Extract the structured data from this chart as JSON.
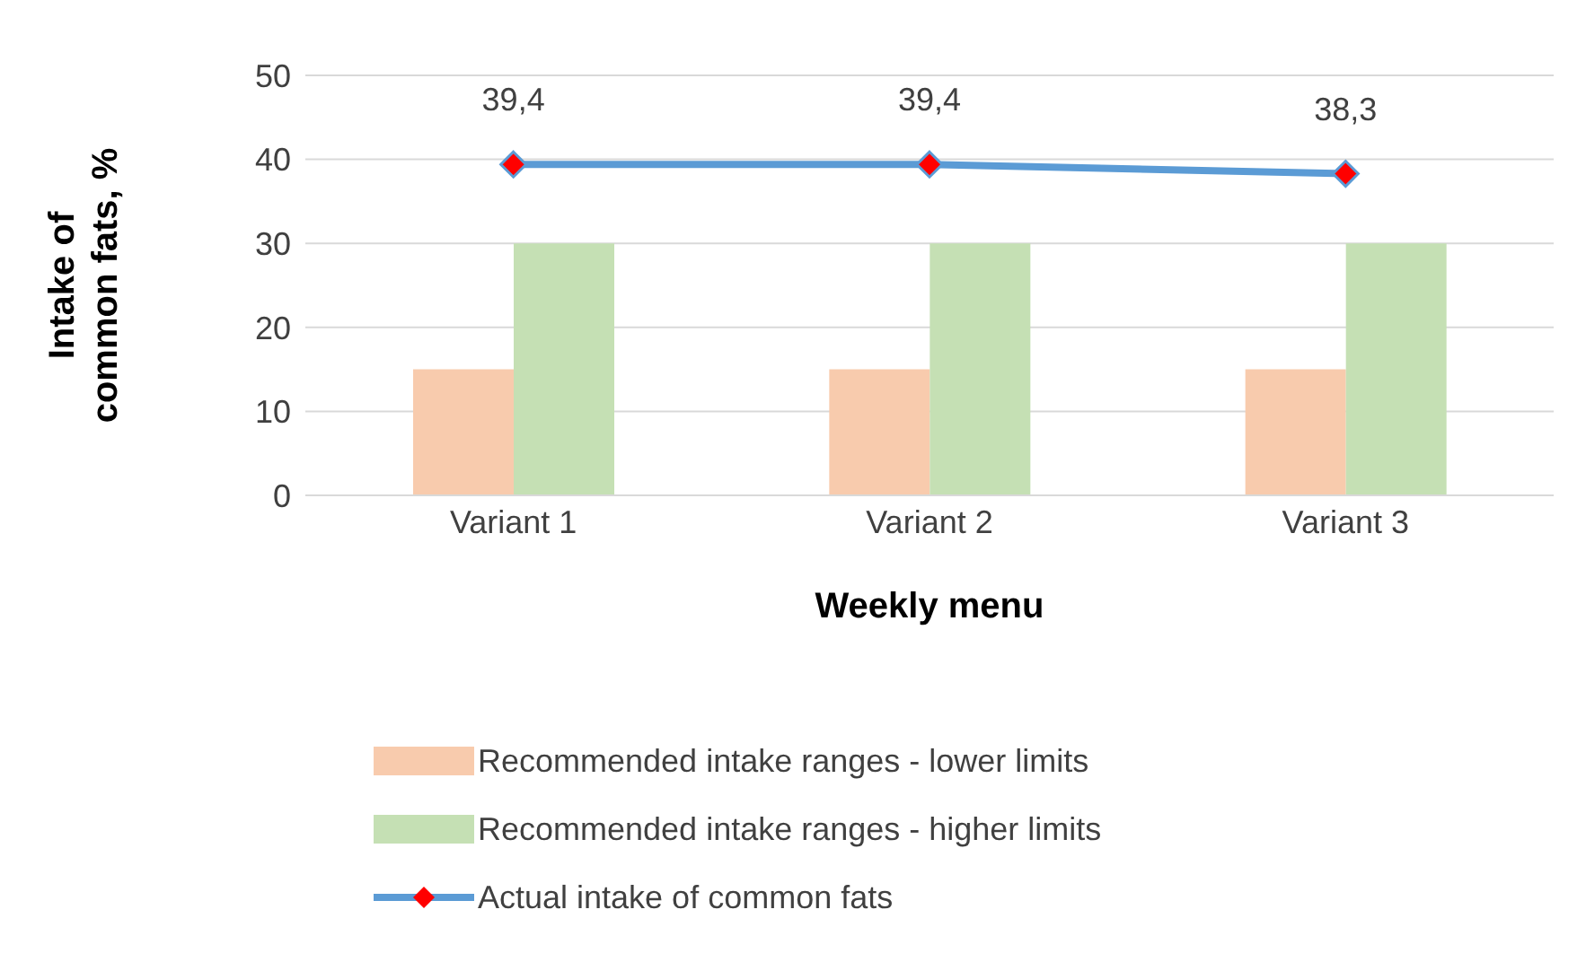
{
  "chart_data": {
    "type": "bar",
    "xlabel": "Weekly menu",
    "ylabel": "Intake of\ncommon fats, %",
    "categories": [
      "Variant 1",
      "Variant 2",
      "Variant 3"
    ],
    "series": [
      {
        "name": "Recommended intake ranges - lower  limits",
        "color": "#f8cbad",
        "values": [
          15,
          15,
          15
        ]
      },
      {
        "name": "Recommended intake ranges - higher   limits",
        "color": "#c5e0b4",
        "values": [
          30,
          30,
          30
        ]
      },
      {
        "name": "Actual intake of common fats",
        "type": "line",
        "color": "#5b9bd5",
        "values": [
          39.4,
          39.4,
          38.3
        ],
        "value_labels": [
          "39,4",
          "39,4",
          "38,3"
        ],
        "marker": "diamond"
      }
    ],
    "ylim": [
      0,
      50
    ],
    "yticks": [
      0,
      10,
      20,
      30,
      40,
      50
    ],
    "grid": "y",
    "legend": "bottom"
  }
}
